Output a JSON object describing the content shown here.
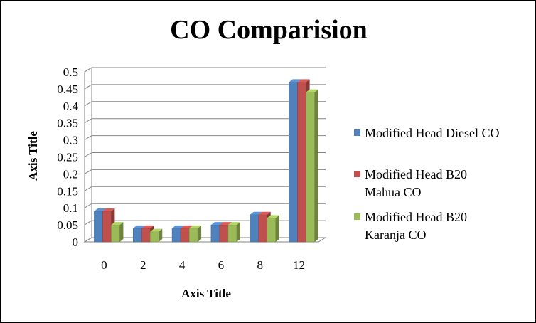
{
  "chart_data": {
    "type": "bar",
    "title": "CO Comparision",
    "xlabel": "Axis Title",
    "ylabel": "Axis Title",
    "categories": [
      "0",
      "2",
      "4",
      "6",
      "8",
      "12"
    ],
    "y_ticks": [
      "0",
      "0.05",
      "0.1",
      "0.15",
      "0.2",
      "0.25",
      "0.3",
      "0.35",
      "0.4",
      "0.45",
      "0.5"
    ],
    "ylim": [
      0,
      0.5
    ],
    "grid": true,
    "legend_position": "right",
    "style": "3d-clustered-column",
    "series": [
      {
        "name": "Modified Head Diesel CO",
        "legend_lines": [
          "Modified Head Diesel CO"
        ],
        "color": "#4F81BD",
        "values": [
          0.09,
          0.04,
          0.04,
          0.05,
          0.08,
          0.47
        ]
      },
      {
        "name": "Modified Head B20 Mahua CO",
        "legend_lines": [
          "Modified Head B20",
          "Mahua CO"
        ],
        "color": "#C0504D",
        "values": [
          0.09,
          0.04,
          0.04,
          0.05,
          0.08,
          0.47
        ]
      },
      {
        "name": "Modified Head B20 Karanja CO",
        "legend_lines": [
          "Modified Head B20",
          "Karanja CO"
        ],
        "color": "#9BBB59",
        "values": [
          0.05,
          0.03,
          0.04,
          0.05,
          0.07,
          0.44
        ]
      }
    ]
  }
}
